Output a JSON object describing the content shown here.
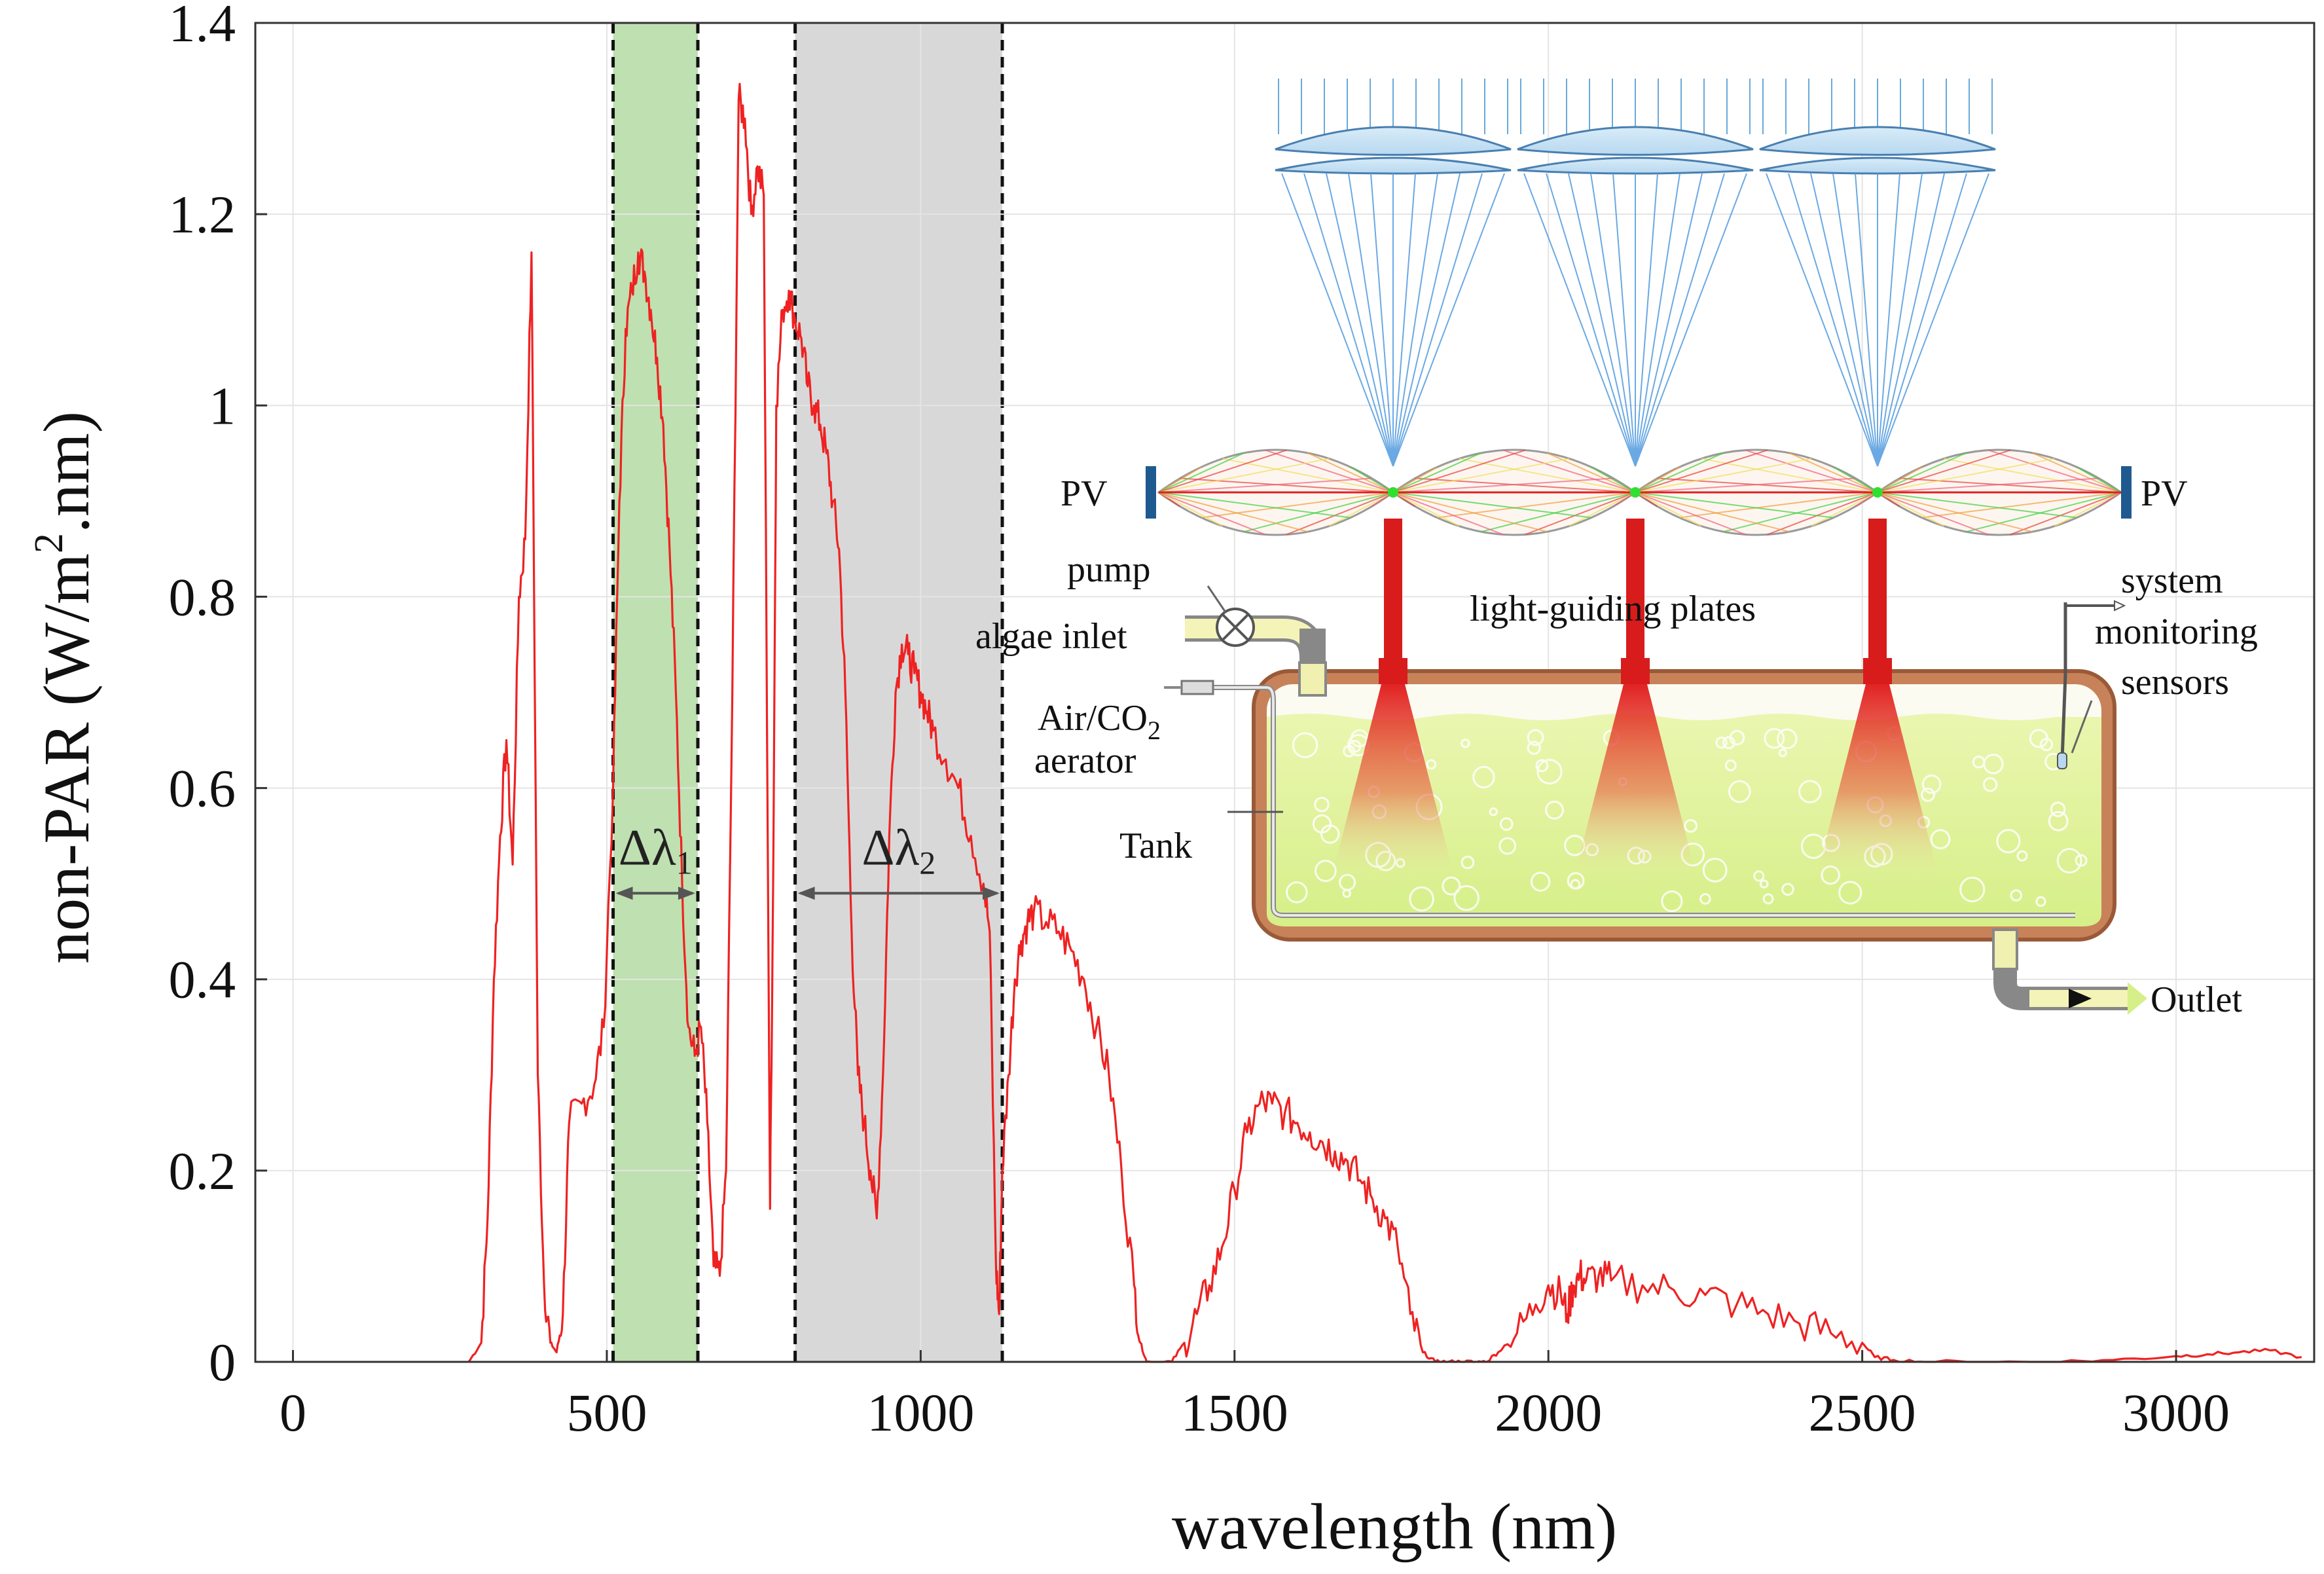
{
  "chart_data": {
    "type": "line",
    "xlabel": "wavelength (nm)",
    "ylabel_main": "non-PAR (W/m",
    "ylabel_sup": "2",
    "ylabel_tail": ".nm)",
    "xlim": [
      -60,
      3220
    ],
    "ylim": [
      0,
      1.4
    ],
    "x_ticks": [
      0,
      500,
      1000,
      1500,
      2000,
      2500,
      3000
    ],
    "x_tick_labels": [
      "0",
      "500",
      "1000",
      "1500",
      "2000",
      "2500",
      "3000"
    ],
    "y_ticks": [
      0,
      0.2,
      0.4,
      0.6,
      0.8,
      1,
      1.2,
      1.4
    ],
    "y_tick_labels": [
      "0",
      "0.2",
      "0.4",
      "0.6",
      "0.8",
      "1",
      "1.2",
      "1.4"
    ],
    "grid": true,
    "series": [
      {
        "color": "#ee2222",
        "x": [
          280,
          300,
          310,
          320,
          330,
          340,
          350,
          360,
          370,
          380,
          390,
          400,
          410,
          420,
          430,
          440,
          460,
          480,
          495,
          510,
          520,
          530,
          540,
          550,
          560,
          570,
          580,
          590,
          600,
          610,
          620,
          630,
          640,
          650,
          660,
          670,
          680,
          690,
          700,
          710,
          720,
          730,
          740,
          750,
          760,
          765,
          770,
          780,
          790,
          800,
          810,
          820,
          830,
          840,
          850,
          860,
          870,
          880,
          890,
          900,
          910,
          920,
          930,
          940,
          950,
          960,
          970,
          980,
          990,
          1000,
          1010,
          1020,
          1040,
          1060,
          1080,
          1100,
          1110,
          1120,
          1125,
          1130,
          1140,
          1150,
          1160,
          1170,
          1180,
          1200,
          1220,
          1240,
          1260,
          1280,
          1300,
          1320,
          1340,
          1350,
          1360,
          1380,
          1400,
          1420,
          1440,
          1460,
          1480,
          1500,
          1520,
          1540,
          1560,
          1580,
          1600,
          1620,
          1640,
          1660,
          1680,
          1700,
          1720,
          1740,
          1760,
          1780,
          1800,
          1820,
          1840,
          1860,
          1880,
          1900,
          1920,
          1950,
          1980,
          2000,
          2020,
          2030,
          2040,
          2050,
          2060,
          2080,
          2100,
          2150,
          2200,
          2250,
          2300,
          2350,
          2400,
          2450,
          2500,
          2520,
          2550,
          2600,
          2700,
          2800,
          2900,
          3000,
          3050,
          3100,
          3150,
          3200
        ],
        "y": [
          0,
          0.02,
          0.15,
          0.4,
          0.55,
          0.65,
          0.52,
          0.8,
          0.86,
          1.16,
          0.3,
          0.08,
          0.02,
          0.01,
          0.05,
          0.25,
          0.27,
          0.29,
          0.35,
          0.6,
          0.9,
          1.08,
          1.12,
          1.16,
          1.14,
          1.1,
          1.05,
          0.98,
          0.85,
          0.7,
          0.5,
          0.35,
          0.32,
          0.35,
          0.25,
          0.1,
          0.09,
          0.2,
          0.7,
          1.32,
          1.3,
          1.2,
          1.25,
          1.22,
          0.16,
          0.5,
          1.0,
          1.1,
          1.12,
          1.09,
          1.07,
          1.02,
          1.0,
          0.98,
          0.95,
          0.9,
          0.85,
          0.7,
          0.45,
          0.3,
          0.25,
          0.2,
          0.15,
          0.3,
          0.55,
          0.7,
          0.75,
          0.74,
          0.72,
          0.7,
          0.68,
          0.66,
          0.63,
          0.6,
          0.55,
          0.5,
          0.45,
          0.1,
          0.05,
          0.2,
          0.3,
          0.4,
          0.44,
          0.46,
          0.47,
          0.46,
          0.45,
          0.43,
          0.4,
          0.35,
          0.3,
          0.2,
          0.08,
          0.02,
          0,
          0,
          0,
          0.02,
          0.05,
          0.08,
          0.12,
          0.18,
          0.24,
          0.27,
          0.27,
          0.26,
          0.25,
          0.24,
          0.23,
          0.22,
          0.21,
          0.19,
          0.17,
          0.15,
          0.12,
          0.05,
          0.01,
          0,
          0,
          0,
          0,
          0,
          0.01,
          0.03,
          0.06,
          0.08,
          0.07,
          0.05,
          0.08,
          0.09,
          0.085,
          0.09,
          0.085,
          0.08,
          0.075,
          0.07,
          0.06,
          0.05,
          0.04,
          0.03,
          0.02,
          0.005,
          0.002,
          0,
          0,
          0,
          0.002,
          0.006,
          0.008,
          0.01,
          0.012,
          0.005
        ]
      }
    ],
    "bands": [
      {
        "start": 510,
        "end": 645,
        "color": "#bfe0b0",
        "label_main": "Δλ",
        "label_sub": "1"
      },
      {
        "start": 800,
        "end": 1130,
        "color": "#d8d8d8",
        "label_main": "Δλ",
        "label_sub": "2"
      }
    ]
  },
  "diagram": {
    "pv_left": "PV",
    "pv_right": "PV",
    "pump": "pump",
    "algae_inlet": "algae  inlet",
    "light_guiding_plates": "light-guiding  plates",
    "aerator_line1_main": "Air/CO",
    "aerator_line1_sub": "2",
    "aerator_line2": "aerator",
    "tank": "Tank",
    "sensors_line1": "system",
    "sensors_line2": "monitoring",
    "sensors_line3": "sensors",
    "outlet": "Outlet"
  }
}
